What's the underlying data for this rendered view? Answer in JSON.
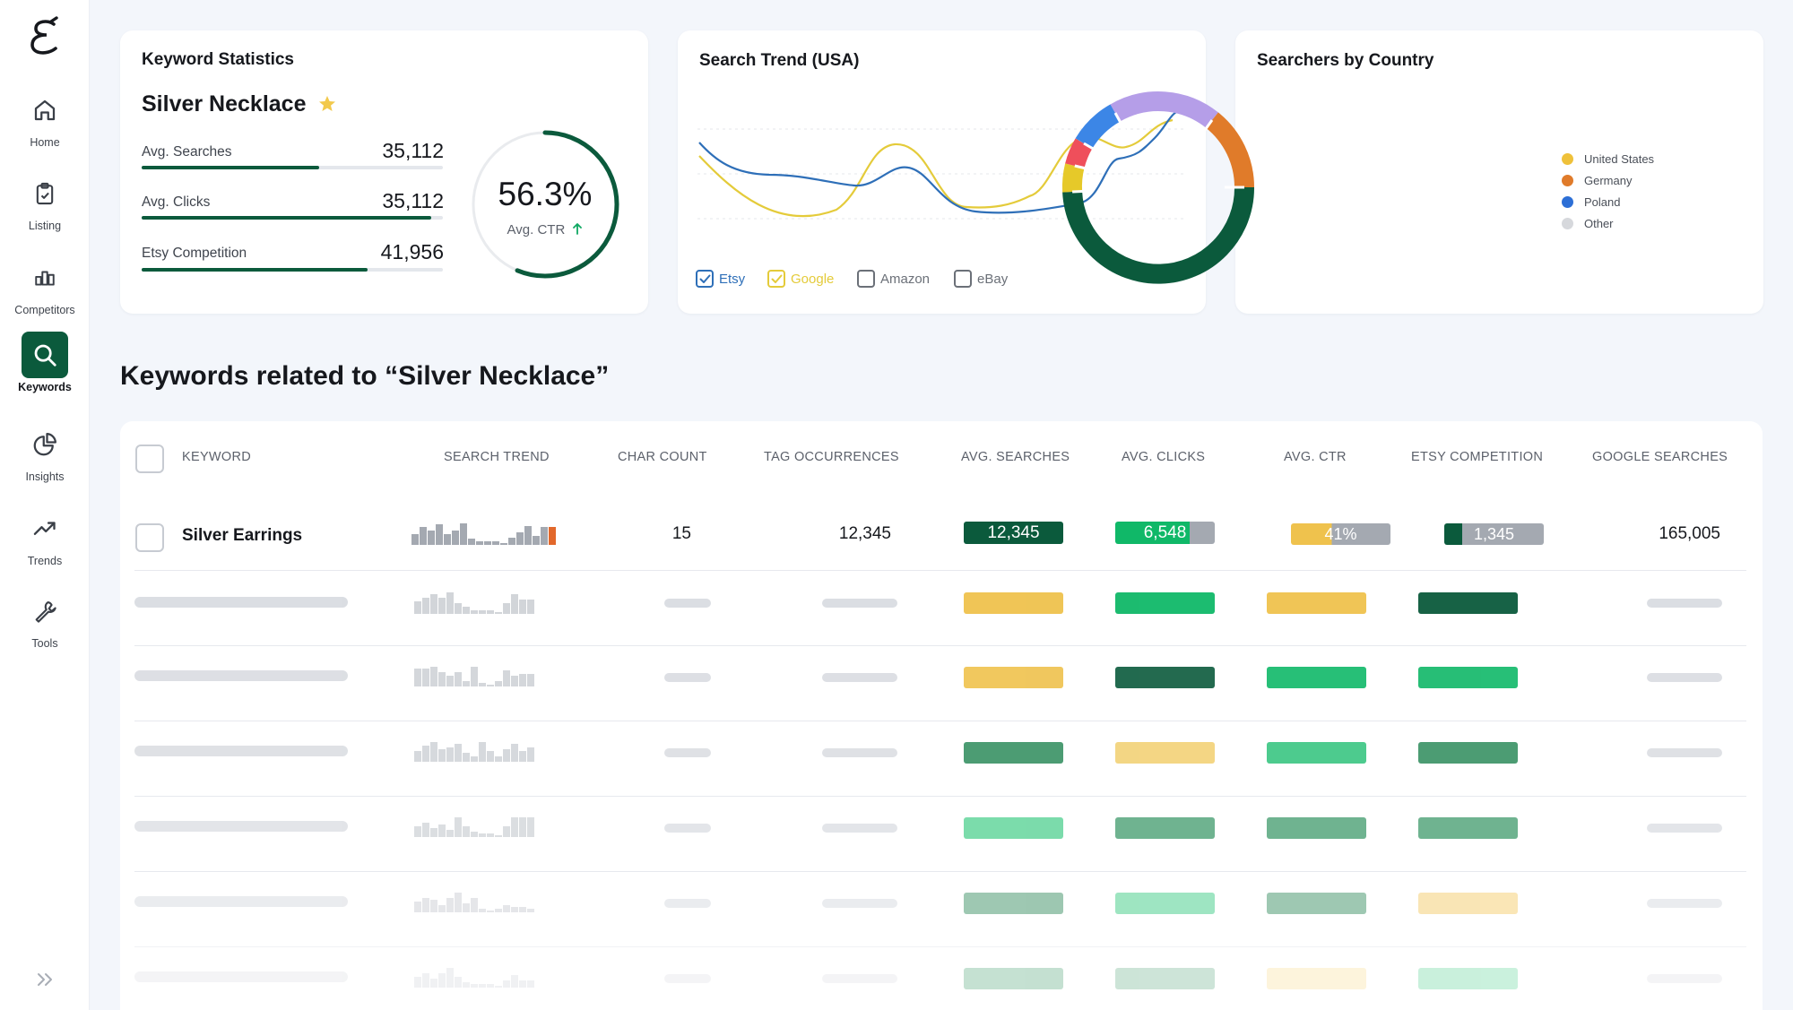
{
  "sidebar": {
    "items": [
      {
        "label": "Home",
        "icon": "home-icon"
      },
      {
        "label": "Listing",
        "icon": "clipboard-icon"
      },
      {
        "label": "Competitors",
        "icon": "bar-chart-icon"
      },
      {
        "label": "Keywords",
        "icon": "search-icon",
        "active": true
      },
      {
        "label": "Insights",
        "icon": "pie-chart-icon"
      },
      {
        "label": "Trends",
        "icon": "trending-up-icon"
      },
      {
        "label": "Tools",
        "icon": "wrench-icon"
      }
    ]
  },
  "keyword_stats": {
    "title": "Keyword Statistics",
    "keyword": "Silver Necklace",
    "metrics": [
      {
        "label": "Avg. Searches",
        "value": "35,112",
        "fill": 0.59
      },
      {
        "label": "Avg. Clicks",
        "value": "35,112",
        "fill": 0.96
      },
      {
        "label": "Etsy Competition",
        "value": "41,956",
        "fill": 0.75
      }
    ],
    "ctr_value": "56.3%",
    "ctr_label": "Avg. CTR",
    "ctr_fraction": 0.563
  },
  "search_trend": {
    "title": "Search Trend (USA)",
    "sources": [
      {
        "label": "Etsy",
        "checked": true,
        "color": "#2e6fb8"
      },
      {
        "label": "Google",
        "checked": true,
        "color": "#e4cb3a"
      },
      {
        "label": "Amazon",
        "checked": false,
        "color": "#6b7078"
      },
      {
        "label": "eBay",
        "checked": false,
        "color": "#6b7078"
      }
    ]
  },
  "searchers_by_country": {
    "title": "Searchers by Country",
    "legend": [
      {
        "label": "United States",
        "color": "#efc13a"
      },
      {
        "label": "Germany",
        "color": "#e07b2a"
      },
      {
        "label": "Poland",
        "color": "#2d6fd6"
      },
      {
        "label": "Other",
        "color": "#d6d8dc"
      }
    ]
  },
  "related": {
    "title": "Keywords related to “Silver Necklace”",
    "columns": [
      "KEYWORD",
      "SEARCH TREND",
      "CHAR COUNT",
      "TAG OCCURRENCES",
      "AVG. SEARCHES",
      "AVG. CLICKS",
      "AVG. CTR",
      "ETSY COMPETITION",
      "GOOGLE SEARCHES"
    ],
    "rows": [
      {
        "keyword": "Silver Earrings",
        "char_count": "15",
        "tag_occurrences": "12,345",
        "avg_searches": "12,345",
        "avg_clicks": "6,548",
        "avg_ctr": "41%",
        "etsy_competition": "1,345",
        "google_searches": "165,005"
      }
    ]
  },
  "colors": {
    "brand_dark_green": "#0b5a3c",
    "green": "#10b868",
    "yellow": "#efc24d",
    "gray": "#a4a9b1"
  }
}
